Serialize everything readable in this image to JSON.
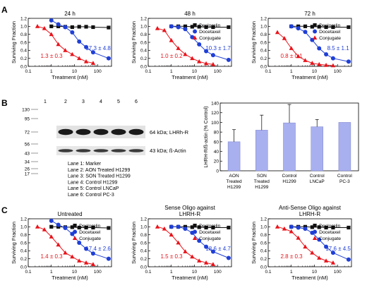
{
  "colors": {
    "deslorelin": "#111111",
    "docetaxel": "#1f3fd6",
    "conjugate": "#e8141b",
    "bar": "#a8b0f0"
  },
  "panels": {
    "A": {
      "label": "A",
      "ylabel": "Surviving Fraction",
      "xlabel": "Treatment (nM)",
      "xticks": [
        "0.1",
        "1",
        "10",
        "100"
      ],
      "yticks": [
        "0.0",
        "0.2",
        "0.4",
        "0.6",
        "0.8",
        "1.0",
        "1.2"
      ],
      "plots": [
        {
          "title": "24 h",
          "conj_label": "1.3 ± 0.3",
          "doc_label": "17.3 ± 4.8",
          "legend": []
        },
        {
          "title": "48 h",
          "conj_label": "1.0 ± 0.2",
          "doc_label": "10.3 ± 1.7",
          "legend": [
            "Deslorelin",
            "Docetaxel",
            "Conjugate"
          ]
        },
        {
          "title": "72 h",
          "conj_label": "0.8 ± 0.1",
          "doc_label": "8.5 ± 1.1",
          "legend": [
            "Deslorelin",
            "Docetaxel",
            "Conjugate"
          ]
        }
      ]
    },
    "B": {
      "label": "B",
      "ladder": [
        "130",
        "95",
        "72",
        "56",
        "43",
        "34",
        "26",
        "17"
      ],
      "lanes_top": [
        "1",
        "2",
        "3",
        "4",
        "5",
        "6"
      ],
      "band1": "64 kDa; LHRh-R",
      "band2": "43 kDa; ß-Actin",
      "legend": [
        "Lane 1: Marker",
        "Lane 2: AON Treated H1299",
        "Lane 3: SON Treated H1299",
        "Lane 4: Control H1299",
        "Lane 5: Control LNCaP",
        "Lane 6: Control PC-3"
      ],
      "bar_ylabel": "LHRH-R/ß-actin (% Control)",
      "bar_yticks": [
        "0",
        "20",
        "40",
        "60",
        "80",
        "100",
        "120",
        "140"
      ],
      "bar_cats": [
        "AON\nTreated\nH1299",
        "SON\nTreated\nH1299",
        "Control\nH1299",
        "Control\nLNCaP",
        "Control\nPC-3"
      ]
    },
    "C": {
      "label": "C",
      "ylabel": "Surviving Fraction",
      "xlabel": "Treatment (nM)",
      "xticks": [
        "0.1",
        "1",
        "10",
        "100"
      ],
      "yticks": [
        "0.0",
        "0.2",
        "0.4",
        "0.6",
        "0.8",
        "1.0",
        "1.2"
      ],
      "plots": [
        {
          "title": "Untreated",
          "conj_label": "1.4 ± 0.3",
          "doc_label": "17.4 ± 2.6",
          "legend": [
            "Deslorelin",
            "Docetaxel",
            "Conjugate"
          ]
        },
        {
          "title": "Sense Oligo against\nLHRH-R",
          "conj_label": "1.5 ± 0.3",
          "doc_label": "18.6 ± 4.7",
          "legend": [
            "Deslorelin",
            "Docetaxel",
            "Conjugate"
          ]
        },
        {
          "title": "Anti-Sense Oligo against\nLHRH-R",
          "conj_label": "2.8 ± 0.3",
          "doc_label": "17.6 ± 4.5",
          "legend": [
            "Deslorelin",
            "Docetaxel",
            "Conjugate"
          ]
        }
      ]
    }
  },
  "chart_data": [
    {
      "type": "scatter",
      "title": "24 h",
      "xscale": "log",
      "xlabel": "Treatment (nM)",
      "ylabel": "Surviving Fraction",
      "xlim": [
        0.1,
        400
      ],
      "ylim": [
        0,
        1.2
      ],
      "series": [
        {
          "name": "Deslorelin",
          "x": [
            1,
            2,
            4,
            8,
            16,
            32,
            64,
            300
          ],
          "y": [
            1.0,
            1.0,
            0.99,
            0.98,
            0.99,
            0.99,
            0.98,
            0.97
          ]
        },
        {
          "name": "Docetaxel",
          "x": [
            1,
            2,
            4,
            8,
            16,
            32,
            64,
            300
          ],
          "y": [
            1.15,
            1.05,
            0.98,
            0.85,
            0.62,
            0.48,
            0.35,
            0.2
          ]
        },
        {
          "name": "Conjugate",
          "x": [
            0.25,
            0.5,
            1,
            2,
            4,
            8,
            16,
            32,
            64
          ],
          "y": [
            1.0,
            0.95,
            0.8,
            0.55,
            0.4,
            0.3,
            0.2,
            0.12,
            0.08
          ]
        }
      ]
    },
    {
      "type": "scatter",
      "title": "48 h",
      "xscale": "log",
      "xlabel": "Treatment (nM)",
      "ylabel": "Surviving Fraction",
      "xlim": [
        0.1,
        400
      ],
      "ylim": [
        0,
        1.2
      ],
      "series": [
        {
          "name": "Deslorelin",
          "x": [
            1,
            2,
            4,
            8,
            16,
            32,
            64,
            300
          ],
          "y": [
            1.0,
            1.0,
            1.0,
            0.99,
            0.99,
            0.98,
            0.98,
            0.98
          ]
        },
        {
          "name": "Docetaxel",
          "x": [
            1,
            2,
            4,
            8,
            16,
            32,
            64,
            300
          ],
          "y": [
            1.0,
            0.98,
            0.93,
            0.73,
            0.55,
            0.38,
            0.28,
            0.16
          ]
        },
        {
          "name": "Conjugate",
          "x": [
            0.25,
            0.5,
            1,
            2,
            4,
            8,
            16,
            32,
            64
          ],
          "y": [
            0.95,
            0.9,
            0.65,
            0.45,
            0.3,
            0.2,
            0.12,
            0.07,
            0.05
          ]
        }
      ]
    },
    {
      "type": "scatter",
      "title": "72 h",
      "xscale": "log",
      "xlabel": "Treatment (nM)",
      "ylabel": "Surviving Fraction",
      "xlim": [
        0.1,
        400
      ],
      "ylim": [
        0,
        1.2
      ],
      "series": [
        {
          "name": "Deslorelin",
          "x": [
            1,
            2,
            4,
            8,
            16,
            32,
            64,
            300
          ],
          "y": [
            1.0,
            1.0,
            1.0,
            0.99,
            0.99,
            0.98,
            0.98,
            0.98
          ]
        },
        {
          "name": "Docetaxel",
          "x": [
            1,
            2,
            4,
            8,
            16,
            32,
            64,
            300
          ],
          "y": [
            1.0,
            0.95,
            0.86,
            0.66,
            0.45,
            0.3,
            0.2,
            0.12
          ]
        },
        {
          "name": "Conjugate",
          "x": [
            0.25,
            0.5,
            1,
            2,
            4,
            8,
            16,
            32,
            64
          ],
          "y": [
            0.85,
            0.7,
            0.45,
            0.25,
            0.15,
            0.08,
            0.05,
            0.03,
            0.02
          ]
        }
      ]
    },
    {
      "type": "bar",
      "ylabel": "LHRH-R/ß-actin (% Control)",
      "ylim": [
        0,
        140
      ],
      "categories": [
        "AON Treated H1299",
        "SON Treated H1299",
        "Control H1299",
        "Control LNCaP",
        "Control PC-3"
      ],
      "values": [
        60,
        84,
        99,
        91,
        100
      ],
      "errors": [
        25,
        31,
        38,
        15,
        0
      ]
    },
    {
      "type": "scatter",
      "title": "Untreated",
      "xscale": "log",
      "xlabel": "Treatment (nM)",
      "ylabel": "Surviving Fraction",
      "xlim": [
        0.1,
        400
      ],
      "ylim": [
        0,
        1.2
      ],
      "series": [
        {
          "name": "Deslorelin",
          "x": [
            1,
            2,
            4,
            8,
            16,
            32,
            64,
            300
          ],
          "y": [
            1.0,
            1.0,
            0.99,
            0.99,
            0.98,
            0.98,
            0.98,
            0.97
          ]
        },
        {
          "name": "Docetaxel",
          "x": [
            1,
            2,
            4,
            8,
            16,
            32,
            64,
            300
          ],
          "y": [
            1.15,
            1.05,
            0.97,
            0.82,
            0.6,
            0.45,
            0.33,
            0.2
          ]
        },
        {
          "name": "Conjugate",
          "x": [
            0.25,
            0.5,
            1,
            2,
            4,
            8,
            16,
            32,
            64
          ],
          "y": [
            1.0,
            0.93,
            0.75,
            0.55,
            0.35,
            0.25,
            0.15,
            0.1,
            0.06
          ]
        }
      ]
    },
    {
      "type": "scatter",
      "title": "Sense Oligo against LHRH-R",
      "xscale": "log",
      "xlabel": "Treatment (nM)",
      "ylabel": "Surviving Fraction",
      "xlim": [
        0.1,
        400
      ],
      "ylim": [
        0,
        1.2
      ],
      "series": [
        {
          "name": "Deslorelin",
          "x": [
            1,
            2,
            4,
            8,
            16,
            32,
            64,
            300
          ],
          "y": [
            1.0,
            1.0,
            1.0,
            0.99,
            0.99,
            0.98,
            0.98,
            0.98
          ]
        },
        {
          "name": "Docetaxel",
          "x": [
            1,
            2,
            4,
            8,
            16,
            32,
            64,
            300
          ],
          "y": [
            1.0,
            1.0,
            0.95,
            0.85,
            0.65,
            0.5,
            0.38,
            0.22
          ]
        },
        {
          "name": "Conjugate",
          "x": [
            0.25,
            0.5,
            1,
            2,
            4,
            8,
            16,
            32,
            64
          ],
          "y": [
            1.0,
            0.95,
            0.8,
            0.6,
            0.38,
            0.25,
            0.15,
            0.1,
            0.06
          ]
        }
      ]
    },
    {
      "type": "scatter",
      "title": "Anti-Sense Oligo against LHRH-R",
      "xscale": "log",
      "xlabel": "Treatment (nM)",
      "ylabel": "Surviving Fraction",
      "xlim": [
        0.1,
        400
      ],
      "ylim": [
        0,
        1.2
      ],
      "series": [
        {
          "name": "Deslorelin",
          "x": [
            1,
            2,
            4,
            8,
            16,
            32,
            64,
            300
          ],
          "y": [
            1.0,
            1.0,
            1.0,
            0.99,
            0.99,
            0.98,
            0.98,
            0.98
          ]
        },
        {
          "name": "Docetaxel",
          "x": [
            1,
            2,
            4,
            8,
            16,
            32,
            64,
            300
          ],
          "y": [
            1.0,
            0.98,
            0.95,
            0.85,
            0.68,
            0.5,
            0.35,
            0.18
          ]
        },
        {
          "name": "Conjugate",
          "x": [
            0.25,
            0.5,
            1,
            2,
            4,
            8,
            16,
            32,
            64
          ],
          "y": [
            1.0,
            0.95,
            0.88,
            0.72,
            0.5,
            0.35,
            0.22,
            0.15,
            0.1
          ]
        }
      ]
    }
  ]
}
